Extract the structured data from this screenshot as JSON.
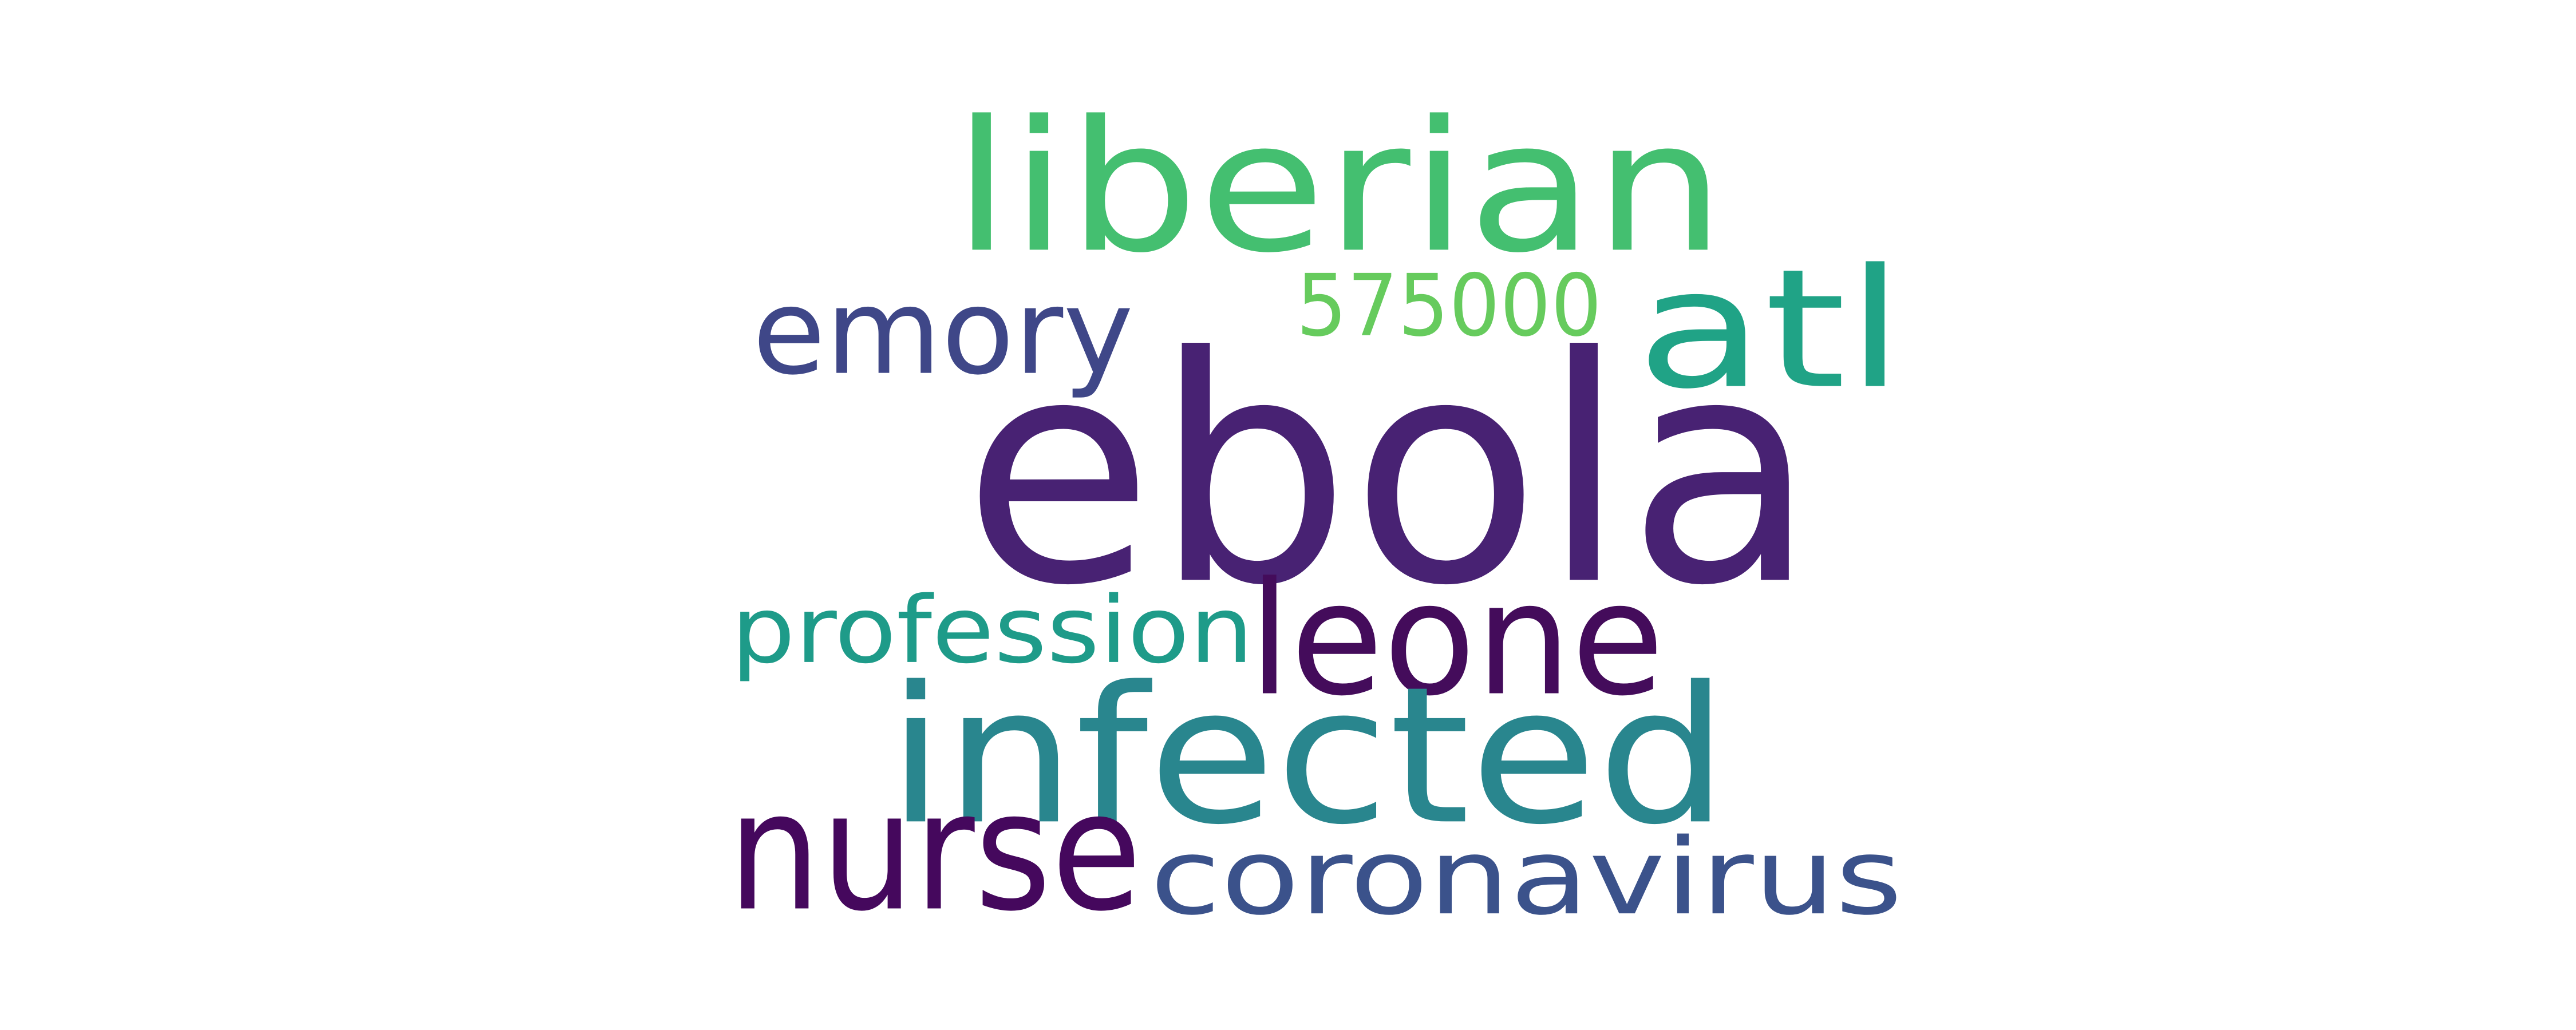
{
  "words": [
    {
      "id": "ebola",
      "text": "ebola",
      "color": "#482273"
    },
    {
      "id": "liberian",
      "text": "liberian",
      "color": "#44bf70"
    },
    {
      "id": "infected",
      "text": "infected",
      "color": "#29868e"
    },
    {
      "id": "atl",
      "text": "atl",
      "color": "#20a386"
    },
    {
      "id": "emory",
      "text": "emory",
      "color": "#3f4788"
    },
    {
      "id": "575000",
      "text": "575000",
      "color": "#66cb5d"
    },
    {
      "id": "leone",
      "text": "leone",
      "color": "#440c5b"
    },
    {
      "id": "profession",
      "text": "profession",
      "color": "#1e9b89"
    },
    {
      "id": "nurse",
      "text": "nurse",
      "color": "#45085d"
    },
    {
      "id": "coronavirus",
      "text": "coronavirus",
      "color": "#3b528b"
    }
  ]
}
